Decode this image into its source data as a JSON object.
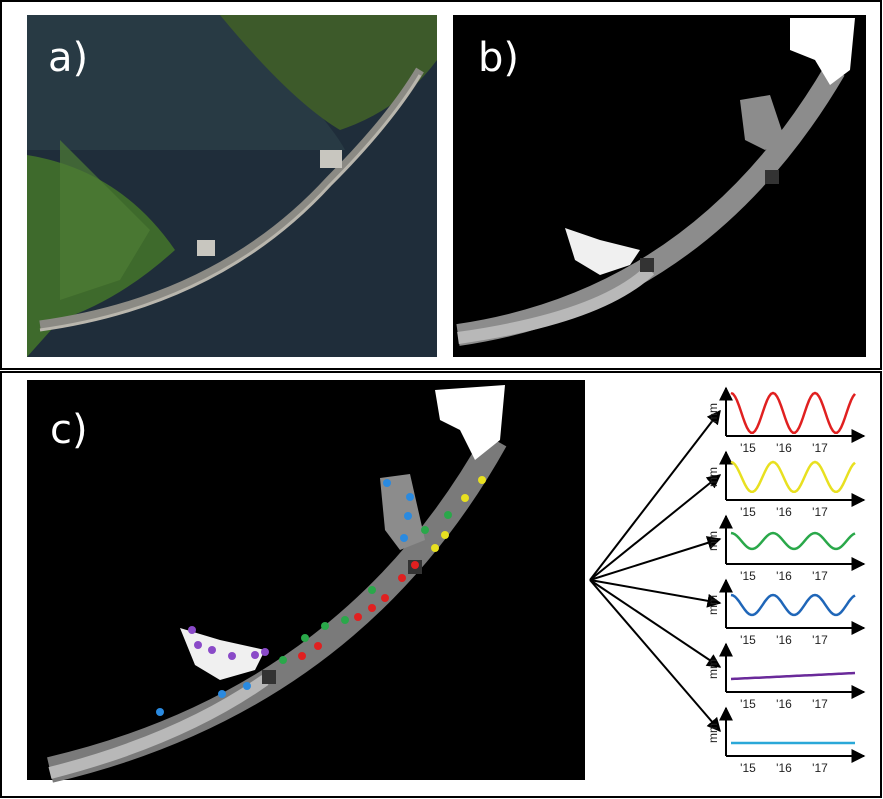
{
  "panels": [
    {
      "label": "a)"
    },
    {
      "label": "b)"
    },
    {
      "label": "c)"
    }
  ],
  "time_series": [
    {
      "color": "#e02020",
      "y_label": "mm",
      "x_labels": [
        "'15",
        "'16",
        "'17"
      ]
    },
    {
      "color": "#e8e020",
      "y_label": "mm",
      "x_labels": [
        "'15",
        "'16",
        "'17"
      ]
    },
    {
      "color": "#2aa84a",
      "y_label": "mm",
      "x_labels": [
        "'15",
        "'16",
        "'17"
      ]
    },
    {
      "color": "#1f66b8",
      "y_label": "mm",
      "x_labels": [
        "'15",
        "'16",
        "'17"
      ]
    },
    {
      "color": "#6a2a9a",
      "y_label": "mm",
      "x_labels": [
        "'15",
        "'16",
        "'17"
      ]
    },
    {
      "color": "#2aa8d8",
      "y_label": "mm",
      "x_labels": [
        "'15",
        "'16",
        "'17"
      ]
    }
  ]
}
